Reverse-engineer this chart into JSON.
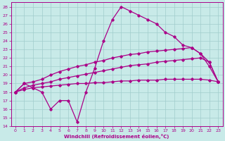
{
  "xlabel": "Windchill (Refroidissement éolien,°C)",
  "xlim": [
    -0.5,
    23.5
  ],
  "ylim": [
    14,
    28.5
  ],
  "yticks": [
    14,
    15,
    16,
    17,
    18,
    19,
    20,
    21,
    22,
    23,
    24,
    25,
    26,
    27,
    28
  ],
  "xticks": [
    0,
    1,
    2,
    3,
    4,
    5,
    6,
    7,
    8,
    9,
    10,
    11,
    12,
    13,
    14,
    15,
    16,
    17,
    18,
    19,
    20,
    21,
    22,
    23
  ],
  "bg_color": "#c8eae8",
  "grid_color": "#a0cccc",
  "line_color": "#aa0088",
  "line1_x": [
    0,
    1,
    2,
    3,
    4,
    5,
    6,
    7,
    8,
    9,
    10,
    11,
    12,
    13,
    14,
    15,
    16,
    17,
    18,
    19,
    20,
    21,
    22,
    23
  ],
  "line1_y": [
    18.0,
    19.0,
    19.2,
    19.5,
    20.0,
    20.4,
    20.7,
    21.0,
    21.2,
    21.5,
    21.7,
    22.0,
    22.2,
    22.4,
    22.5,
    22.7,
    22.8,
    22.9,
    23.0,
    23.1,
    23.2,
    22.5,
    21.5,
    19.2
  ],
  "line2_x": [
    0,
    1,
    2,
    3,
    4,
    5,
    6,
    7,
    8,
    9,
    10,
    11,
    12,
    13,
    14,
    15,
    16,
    17,
    18,
    19,
    20,
    21,
    22,
    23
  ],
  "line2_y": [
    18.0,
    18.5,
    18.8,
    19.0,
    19.2,
    19.5,
    19.7,
    19.9,
    20.1,
    20.3,
    20.5,
    20.7,
    20.9,
    21.1,
    21.2,
    21.3,
    21.5,
    21.6,
    21.7,
    21.8,
    21.9,
    22.0,
    21.5,
    19.2
  ],
  "line3_x": [
    0,
    1,
    2,
    3,
    4,
    5,
    6,
    7,
    8,
    9,
    10,
    11,
    12,
    13,
    14,
    15,
    16,
    17,
    18,
    19,
    20,
    21,
    22,
    23
  ],
  "line3_y": [
    18.0,
    18.3,
    18.5,
    18.6,
    18.7,
    18.8,
    18.9,
    19.0,
    19.0,
    19.1,
    19.1,
    19.2,
    19.3,
    19.3,
    19.4,
    19.4,
    19.4,
    19.5,
    19.5,
    19.5,
    19.5,
    19.5,
    19.4,
    19.2
  ],
  "line4_x": [
    0,
    1,
    2,
    3,
    4,
    5,
    6,
    7,
    8,
    9,
    10,
    11,
    12,
    13,
    14,
    15,
    16,
    17,
    18,
    19,
    20,
    21,
    22,
    23
  ],
  "line4_y": [
    18.0,
    19.0,
    18.5,
    18.0,
    16.0,
    17.0,
    17.0,
    14.5,
    18.0,
    20.8,
    24.0,
    26.5,
    28.0,
    27.5,
    27.0,
    26.5,
    26.0,
    25.0,
    24.5,
    23.5,
    23.2,
    22.5,
    21.0,
    19.2
  ]
}
